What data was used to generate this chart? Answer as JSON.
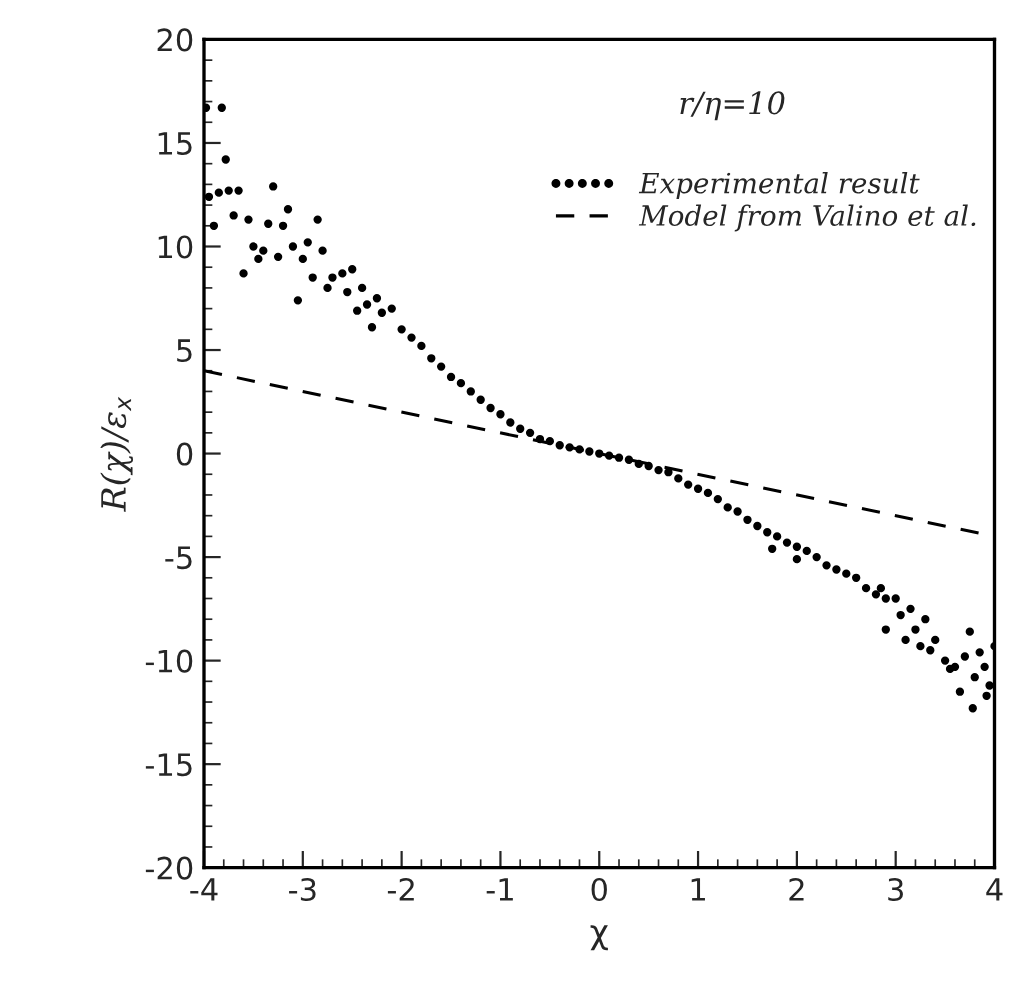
{
  "chart_data": {
    "type": "scatter",
    "xlabel": "χ",
    "ylabel": "R(χ)/ε$_{x}$",
    "annotations": [
      "r/η=10"
    ],
    "xlim": [
      -4,
      4
    ],
    "xticks": [
      -4,
      -3,
      -2,
      -1,
      0,
      1,
      2,
      3,
      4
    ],
    "ylim": [
      -20,
      20
    ],
    "yticks": [
      -20,
      -15,
      -10,
      -5,
      0,
      5,
      10,
      15,
      20
    ],
    "grid": false,
    "legend": "top right",
    "series": [
      {
        "name": "Experimental result",
        "marker": "circle",
        "color": "#000000",
        "x": [
          -3.98,
          -3.95,
          -3.9,
          -3.85,
          -3.82,
          -3.78,
          -3.75,
          -3.7,
          -3.65,
          -3.6,
          -3.55,
          -3.5,
          -3.45,
          -3.4,
          -3.35,
          -3.3,
          -3.25,
          -3.2,
          -3.15,
          -3.1,
          -3.05,
          -3.0,
          -2.95,
          -2.9,
          -2.85,
          -2.8,
          -2.75,
          -2.7,
          -2.6,
          -2.55,
          -2.5,
          -2.45,
          -2.4,
          -2.35,
          -2.3,
          -2.25,
          -2.2,
          -2.1,
          -2.0,
          -1.9,
          -1.8,
          -1.7,
          -1.6,
          -1.5,
          -1.4,
          -1.3,
          -1.2,
          -1.1,
          -1.0,
          -0.9,
          -0.8,
          -0.7,
          -0.6,
          -0.5,
          -0.4,
          -0.3,
          -0.2,
          -0.1,
          0,
          0.1,
          0.2,
          0.3,
          0.4,
          0.5,
          0.6,
          0.7,
          0.8,
          0.9,
          1.0,
          1.1,
          1.2,
          1.3,
          1.4,
          1.5,
          1.6,
          1.7,
          1.75,
          1.8,
          1.9,
          2.0,
          2.0,
          2.1,
          2.2,
          2.3,
          2.4,
          2.5,
          2.6,
          2.7,
          2.8,
          2.85,
          2.9,
          2.9,
          3.0,
          3.05,
          3.1,
          3.15,
          3.2,
          3.25,
          3.3,
          3.35,
          3.4,
          3.5,
          3.55,
          3.6,
          3.65,
          3.7,
          3.75,
          3.78,
          3.8,
          3.85,
          3.9,
          3.92,
          3.95,
          4.0
        ],
        "values": [
          16.7,
          12.4,
          11.0,
          12.6,
          16.7,
          14.2,
          12.7,
          11.5,
          12.7,
          8.7,
          11.3,
          10.0,
          9.4,
          9.8,
          11.1,
          12.9,
          9.5,
          11.0,
          11.8,
          10.0,
          7.4,
          9.4,
          10.2,
          8.5,
          11.3,
          9.8,
          8.0,
          8.5,
          8.7,
          7.8,
          8.9,
          6.9,
          8.0,
          7.2,
          6.1,
          7.5,
          6.8,
          7.0,
          6.0,
          5.6,
          5.2,
          4.6,
          4.2,
          3.7,
          3.4,
          3.0,
          2.6,
          2.2,
          1.9,
          1.5,
          1.2,
          1.0,
          0.7,
          0.6,
          0.4,
          0.3,
          0.2,
          0.1,
          0,
          -0.1,
          -0.2,
          -0.3,
          -0.5,
          -0.6,
          -0.8,
          -0.9,
          -1.2,
          -1.5,
          -1.7,
          -1.9,
          -2.2,
          -2.6,
          -2.8,
          -3.2,
          -3.5,
          -3.8,
          -4.6,
          -4.0,
          -4.3,
          -4.5,
          -5.1,
          -4.7,
          -5.0,
          -5.4,
          -5.6,
          -5.8,
          -6.0,
          -6.5,
          -6.8,
          -6.5,
          -7.0,
          -8.5,
          -7.0,
          -7.8,
          -9.0,
          -7.5,
          -8.5,
          -9.3,
          -8.0,
          -9.5,
          -9.0,
          -10.0,
          -10.4,
          -10.3,
          -11.5,
          -9.8,
          -8.6,
          -12.3,
          -10.8,
          -9.6,
          -10.3,
          -11.7,
          -11.2,
          -9.3
        ]
      },
      {
        "name": "Model from Valino et al.",
        "type": "line",
        "line_style": "dashed",
        "color": "#000000",
        "x": [
          -4,
          4
        ],
        "values": [
          4,
          -4
        ]
      }
    ]
  }
}
